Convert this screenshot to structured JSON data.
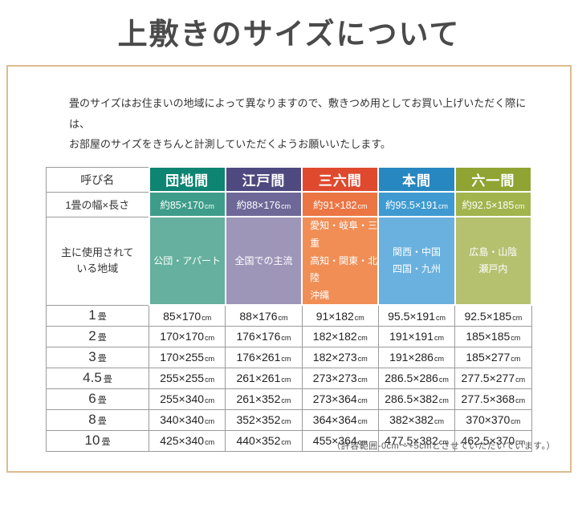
{
  "page": {
    "title": "上敷きのサイズについて",
    "intro_lines": [
      "畳のサイズはお住まいの地域によって異なりますので、敷きつめ用としてお買い上げいただく際には、",
      "お部屋のサイズをきちんと計測していただくようお願いいたします。"
    ],
    "footnote": "（許容範囲-0cm～+5cmとさせていただいています。）"
  },
  "table": {
    "corner_label": "呼び名",
    "size_row_label": "1畳の幅×長さ",
    "region_row_label_lines": [
      "主に使用されて",
      "いる地域"
    ],
    "unit": "cm",
    "mat_suffix": "畳",
    "columns": [
      {
        "label": "団地間",
        "header_bg": "#0e8473",
        "size_bg": "#3e9d8a",
        "region_bg": "#65b09e",
        "size": "約85×170",
        "regions": [
          "公団・アパート"
        ]
      },
      {
        "label": "江戸間",
        "header_bg": "#4e4a80",
        "size_bg": "#6e6898",
        "region_bg": "#9e96b9",
        "size": "約88×176",
        "regions": [
          "全国での主流"
        ]
      },
      {
        "label": "三六間",
        "header_bg": "#df4a2e",
        "size_bg": "#eb7543",
        "region_bg": "#f08e56",
        "size": "約91×182",
        "regions": [
          "愛知・岐阜・三重",
          "高知・関東・北陸",
          "沖縄"
        ]
      },
      {
        "label": "本間",
        "header_bg": "#2787c1",
        "size_bg": "#3e9ad1",
        "region_bg": "#6ab1df",
        "size": "約95.5×191",
        "regions": [
          "関西・中国",
          "四国・九州"
        ]
      },
      {
        "label": "六一間",
        "header_bg": "#8fa433",
        "size_bg": "#a2b44d",
        "region_bg": "#b5c16f",
        "size": "約92.5×185",
        "regions": [
          "広島・山陰",
          "瀬戸内"
        ]
      }
    ],
    "rows": [
      {
        "num": "1",
        "cells": [
          "85×170",
          "88×176",
          "91×182",
          "95.5×191",
          "92.5×185"
        ]
      },
      {
        "num": "2",
        "cells": [
          "170×170",
          "176×176",
          "182×182",
          "191×191",
          "185×185"
        ]
      },
      {
        "num": "3",
        "cells": [
          "170×255",
          "176×261",
          "182×273",
          "191×286",
          "185×277"
        ]
      },
      {
        "num": "4.5",
        "cells": [
          "255×255",
          "261×261",
          "273×273",
          "286.5×286",
          "277.5×277"
        ]
      },
      {
        "num": "6",
        "cells": [
          "255×340",
          "261×352",
          "273×364",
          "286.5×382",
          "277.5×368"
        ]
      },
      {
        "num": "8",
        "cells": [
          "340×340",
          "352×352",
          "364×364",
          "382×382",
          "370×370"
        ]
      },
      {
        "num": "10",
        "cells": [
          "425×340",
          "440×352",
          "455×364",
          "477.5×382",
          "462.5×370"
        ]
      }
    ]
  }
}
